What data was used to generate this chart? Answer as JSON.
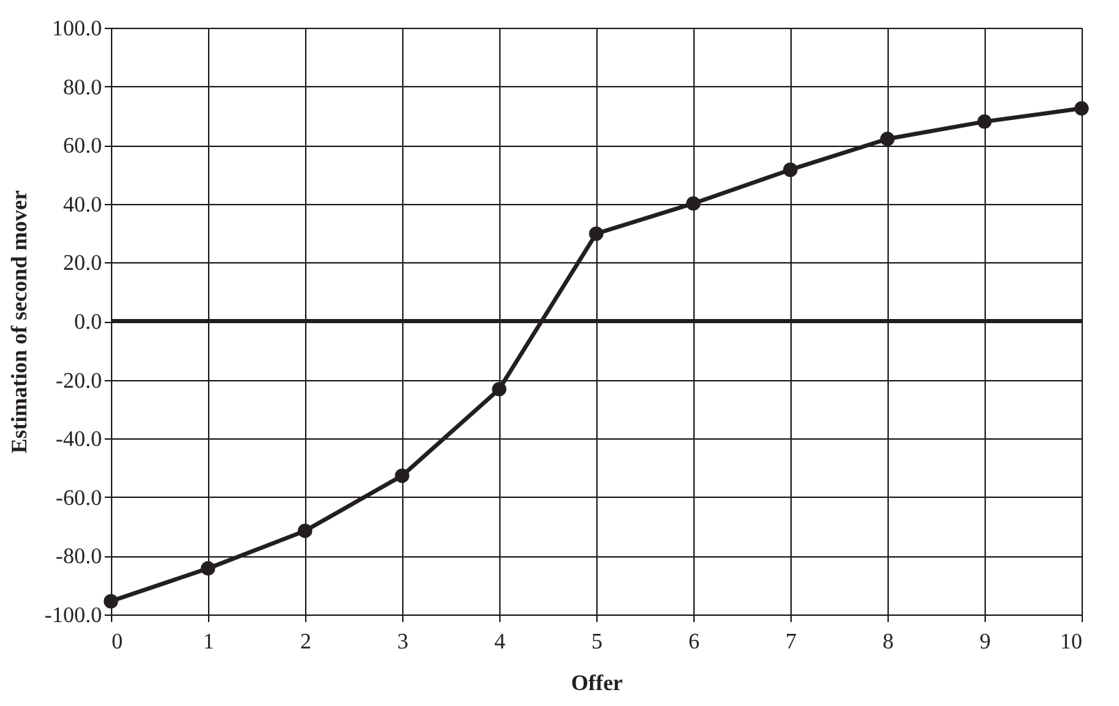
{
  "chart_data": {
    "type": "line",
    "xlabel": "Offer",
    "ylabel": "Estimation of second mover",
    "x": [
      0,
      1,
      2,
      3,
      4,
      5,
      6,
      7,
      8,
      9,
      10
    ],
    "series": [
      {
        "color": "#231f20",
        "values": [
          -95.5,
          -84.3,
          -71.5,
          -52.7,
          -23.2,
          29.8,
          40.1,
          51.6,
          62.1,
          68.0,
          72.5
        ]
      }
    ],
    "xlim": [
      0,
      10
    ],
    "xticks": [
      0,
      1,
      2,
      3,
      4,
      5,
      6,
      7,
      8,
      9,
      10
    ],
    "ylim": [
      -100,
      100
    ],
    "yticks": [
      {
        "value": -100,
        "label": "-100.0"
      },
      {
        "value": -80,
        "label": "-80.0"
      },
      {
        "value": -60,
        "label": "-60.0"
      },
      {
        "value": -40,
        "label": "-40.0"
      },
      {
        "value": -20,
        "label": "-20.0"
      },
      {
        "value": 0,
        "label": "0.0"
      },
      {
        "value": 20,
        "label": "20.0"
      },
      {
        "value": 40,
        "label": "40.0"
      },
      {
        "value": 60,
        "label": "60.0"
      },
      {
        "value": 80,
        "label": "80.0"
      },
      {
        "value": 100,
        "label": "100.0"
      }
    ],
    "ref_lines": [
      {
        "axis": "y",
        "value": 0,
        "color": "#231f20"
      }
    ],
    "grid": true,
    "marker": "circle",
    "line_style": "solid"
  }
}
